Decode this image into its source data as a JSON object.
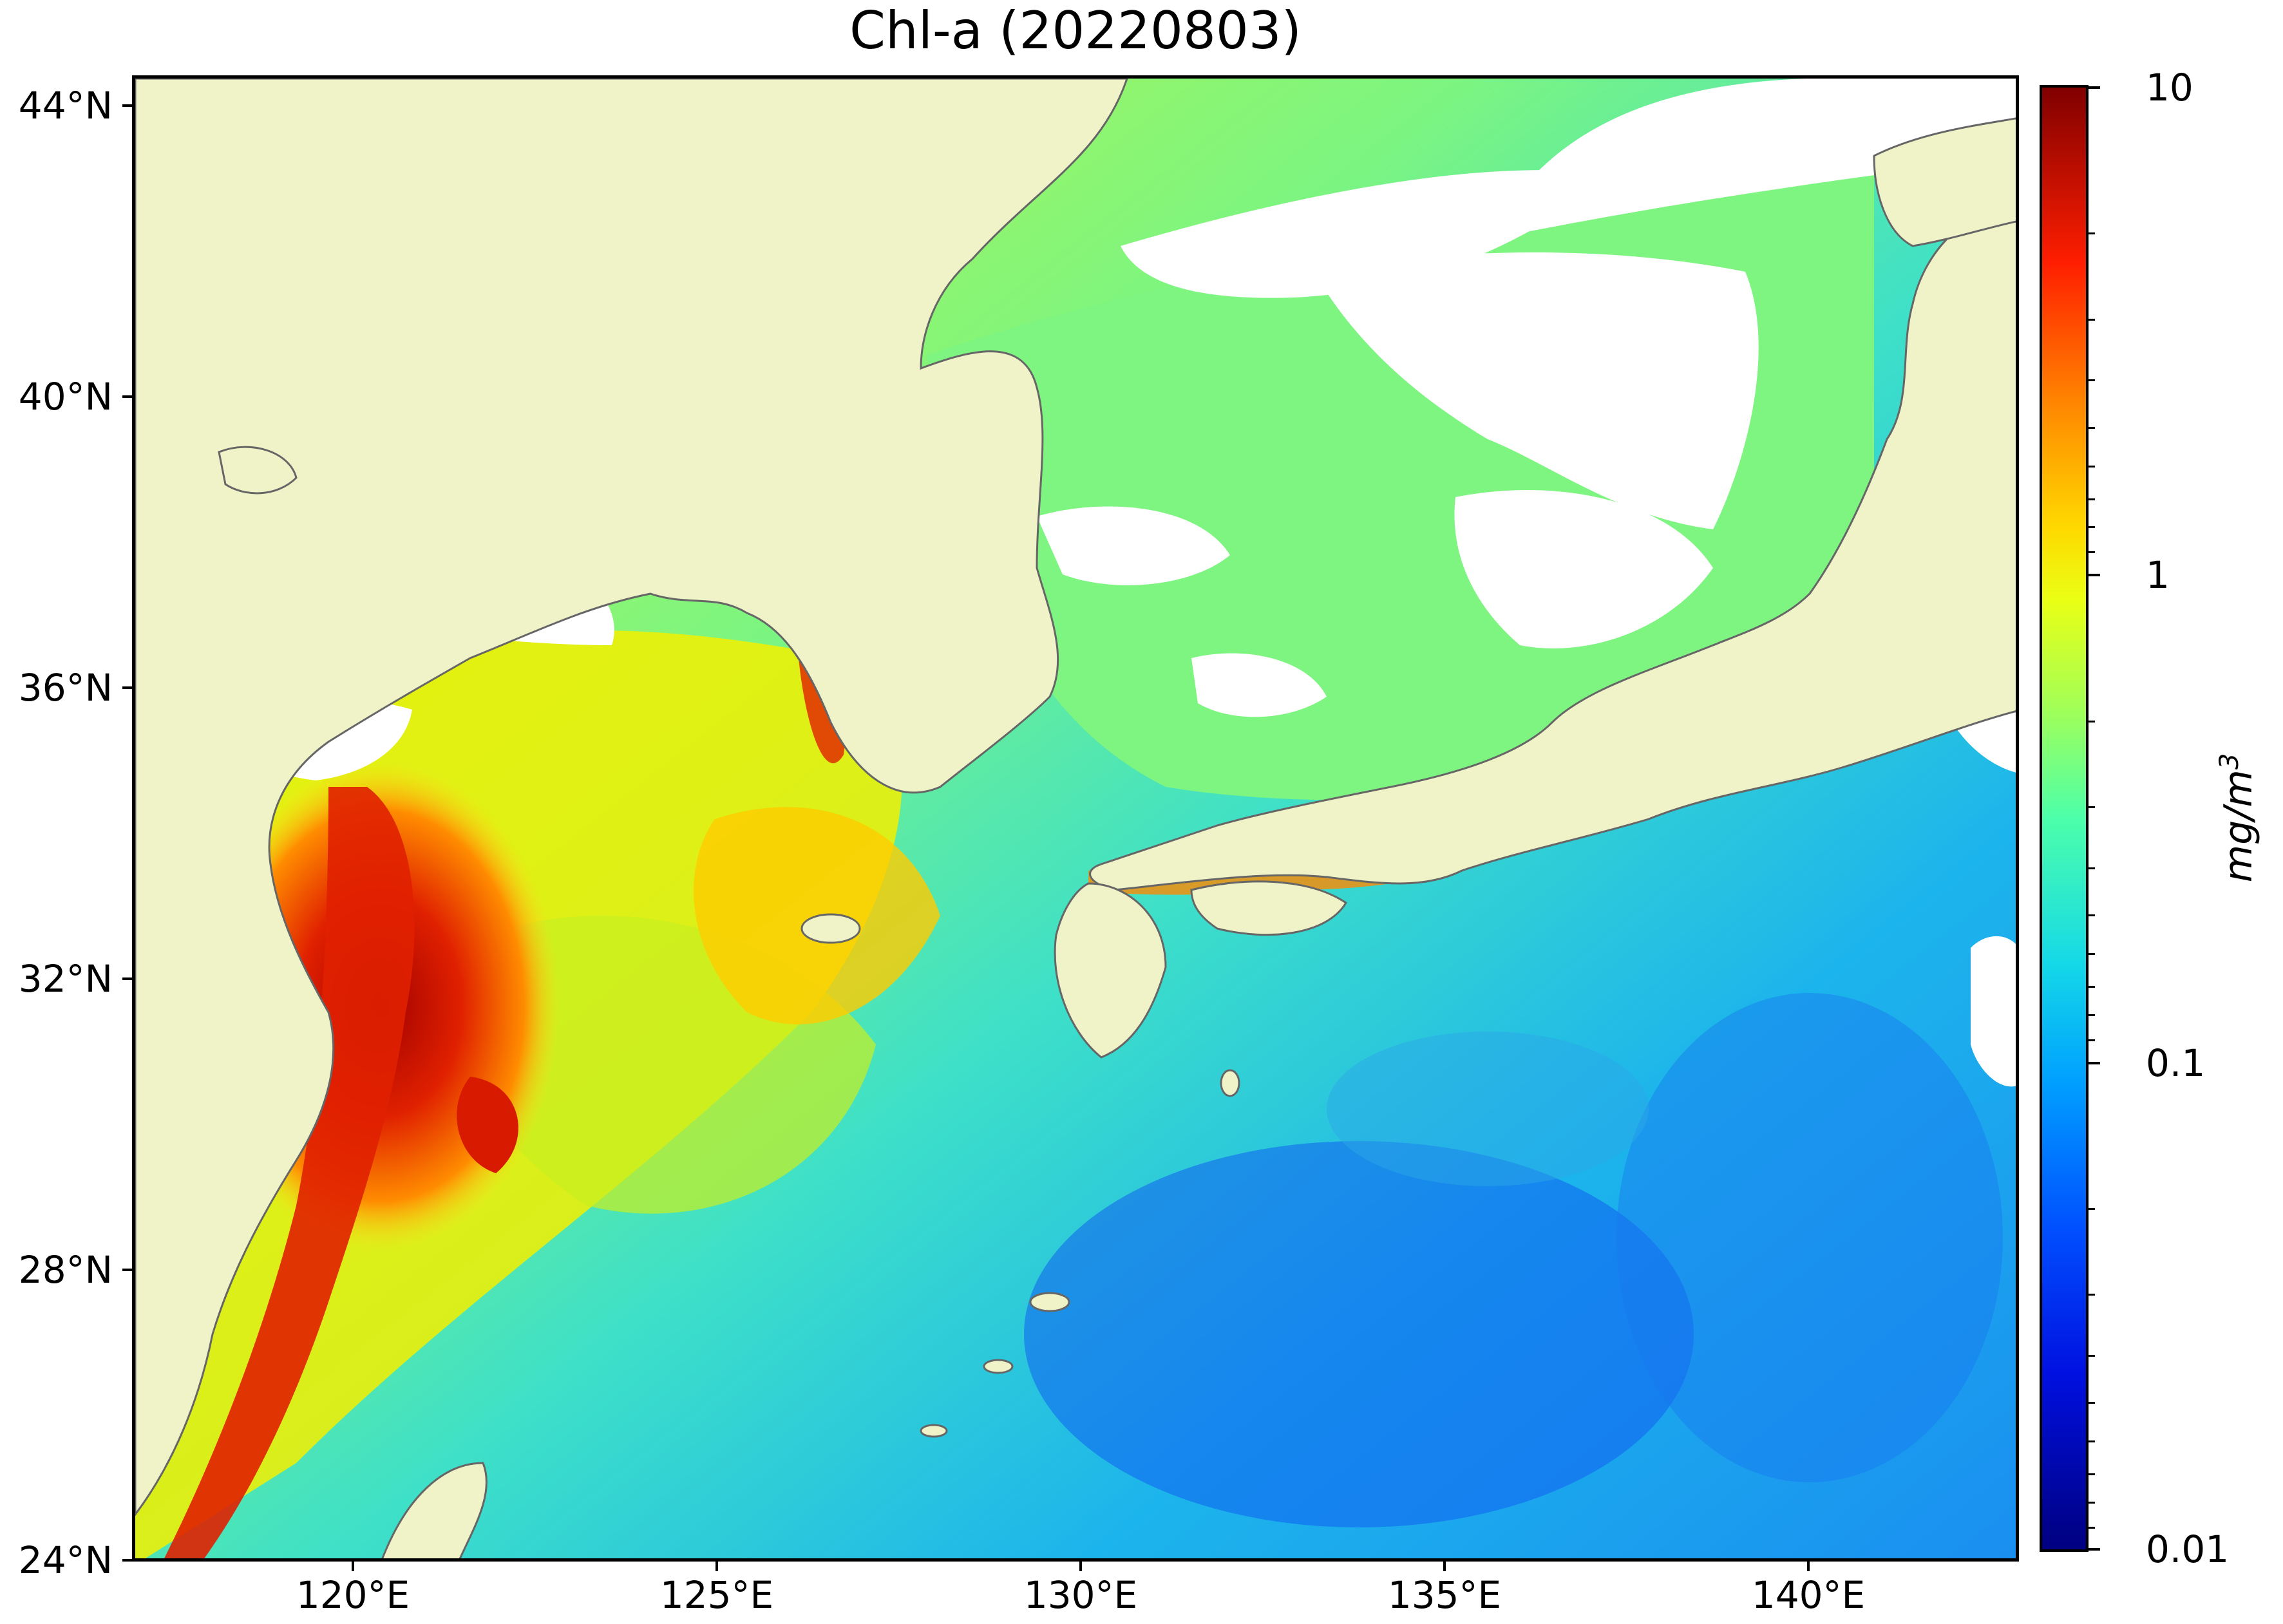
{
  "title": "Chl-a (20220803)",
  "axes": {
    "lon_ticks": [
      "120°E",
      "125°E",
      "130°E",
      "135°E",
      "140°E"
    ],
    "lat_ticks": [
      "44°N",
      "40°N",
      "36°N",
      "32°N",
      "28°N",
      "24°N"
    ],
    "lon_range": [
      116.5,
      143
    ],
    "lat_range": [
      24,
      44.5
    ]
  },
  "colorbar": {
    "label": "mg/m",
    "label_superscript": "3",
    "ticks": [
      "10",
      "1",
      "0.1",
      "0.01"
    ],
    "scale": "log",
    "range": [
      0.01,
      10
    ],
    "colormap": "jet"
  },
  "colors": {
    "land": "#f0f2c8",
    "no_data": "#ffffff",
    "coastline": "#666666",
    "open_ocean": "#1fb8e8",
    "coastal_high": "#e02000",
    "shelf_mid": "#ffdc20",
    "sea_of_japan": "#7df580"
  },
  "legend_items": [
    "land",
    "no data / cloud",
    "chlorophyll-a concentration"
  ]
}
